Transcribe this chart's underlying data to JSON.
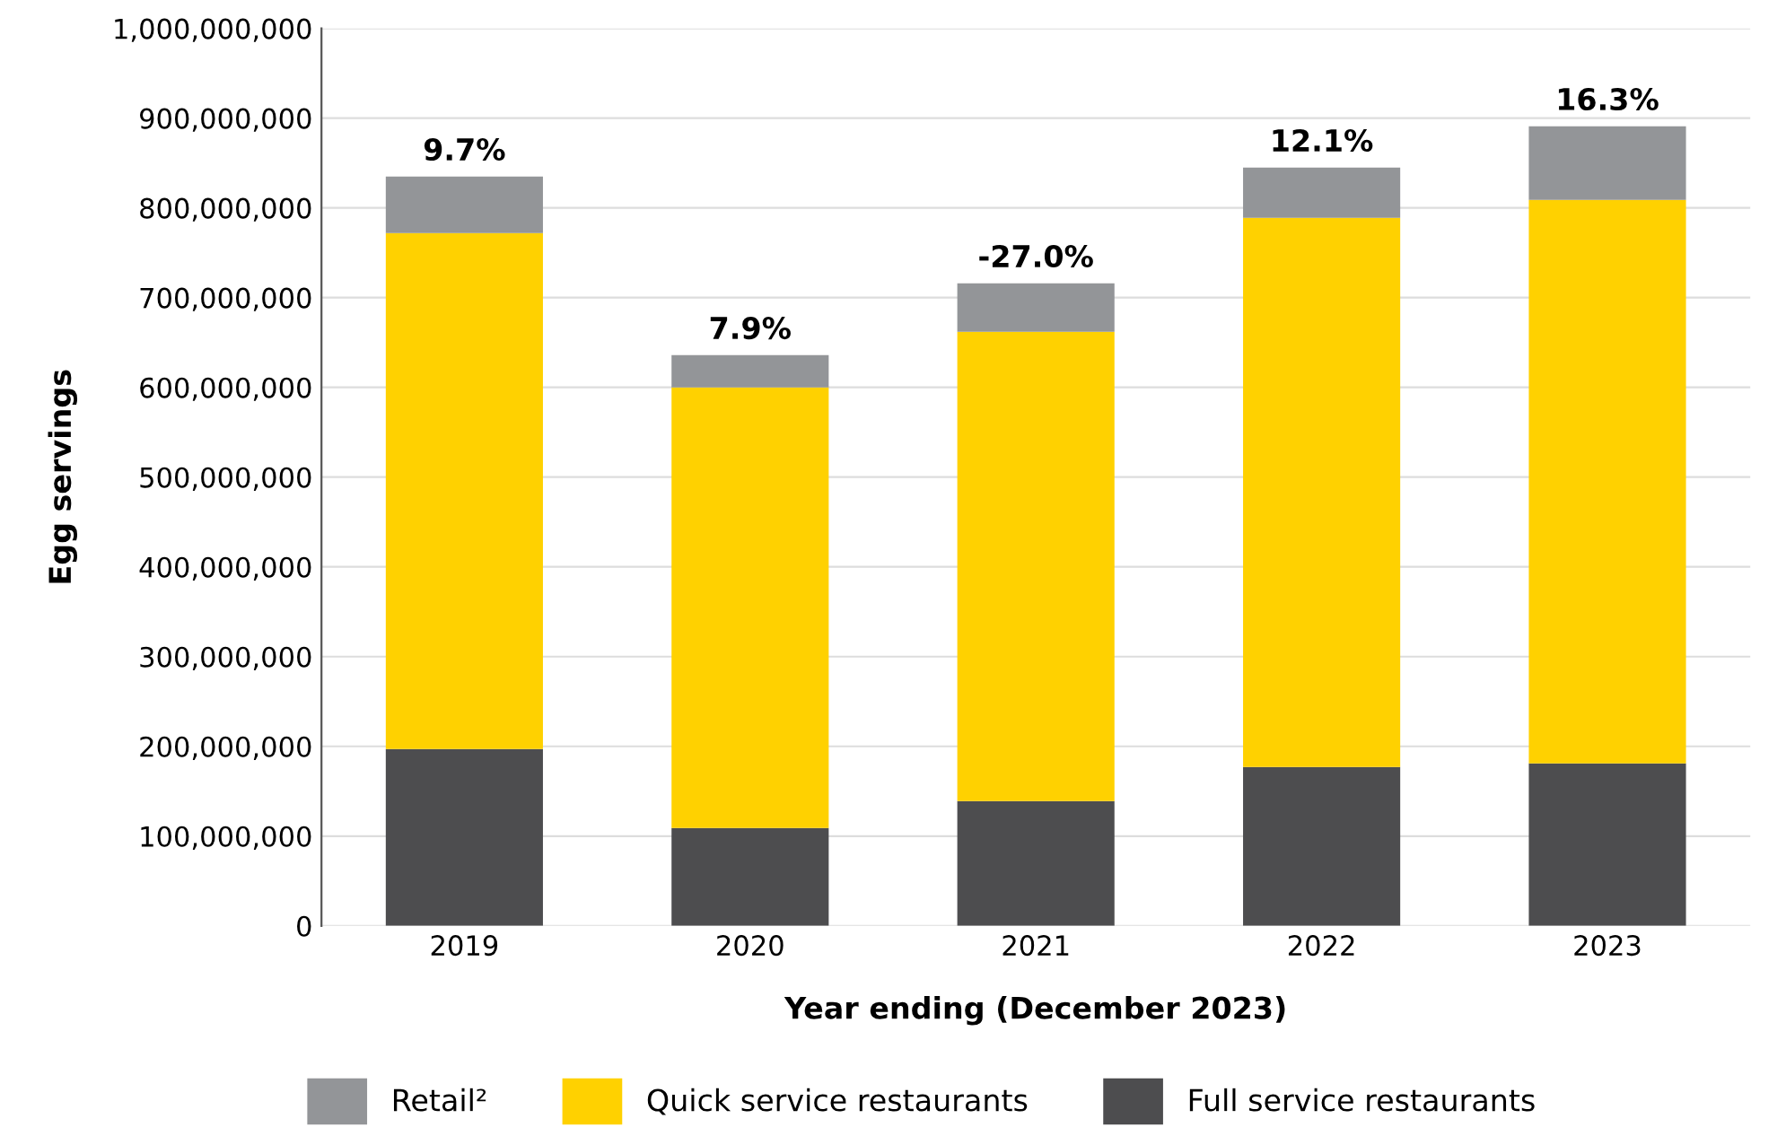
{
  "chart_data": {
    "type": "bar",
    "stacked": true,
    "xlabel": "Year ending (December 2023)",
    "ylabel": "Egg servings",
    "categories": [
      "2019",
      "2020",
      "2021",
      "2022",
      "2023"
    ],
    "series": [
      {
        "name": "Full service restaurants",
        "color": "#4d4d4f",
        "values": [
          197000000,
          109000000,
          139000000,
          177000000,
          181000000
        ]
      },
      {
        "name": "Quick service restaurants",
        "color": "#ffd100",
        "values": [
          575000000,
          491000000,
          523000000,
          612000000,
          628000000
        ]
      },
      {
        "name": "Retail²",
        "color": "#939598",
        "values": [
          63000000,
          36000000,
          54000000,
          56000000,
          82000000
        ]
      }
    ],
    "annotations": [
      {
        "text": "9.7%",
        "x": "2019",
        "y": 835000000
      },
      {
        "text": "7.9%",
        "x": "2020",
        "y": 636000000
      },
      {
        "text": "-27.0%",
        "x": "2021",
        "y": 716000000
      },
      {
        "text": "12.1%",
        "x": "2022",
        "y": 845000000
      },
      {
        "text": "16.3%",
        "x": "2023",
        "y": 891000000
      }
    ],
    "ylim": [
      0,
      1000000000
    ],
    "yticks": [
      {
        "value": 0,
        "label": "0"
      },
      {
        "value": 100000000,
        "label": "100,000,000"
      },
      {
        "value": 200000000,
        "label": "200,000,000"
      },
      {
        "value": 300000000,
        "label": "300,000,000"
      },
      {
        "value": 400000000,
        "label": "400,000,000"
      },
      {
        "value": 500000000,
        "label": "500,000,000"
      },
      {
        "value": 600000000,
        "label": "600,000,000"
      },
      {
        "value": 700000000,
        "label": "700,000,000"
      },
      {
        "value": 800000000,
        "label": "800,000,000"
      },
      {
        "value": 900000000,
        "label": "900,000,000"
      },
      {
        "value": 1000000000,
        "label": "1,000,000,000"
      }
    ],
    "grid": "y",
    "legend": "bottom"
  }
}
